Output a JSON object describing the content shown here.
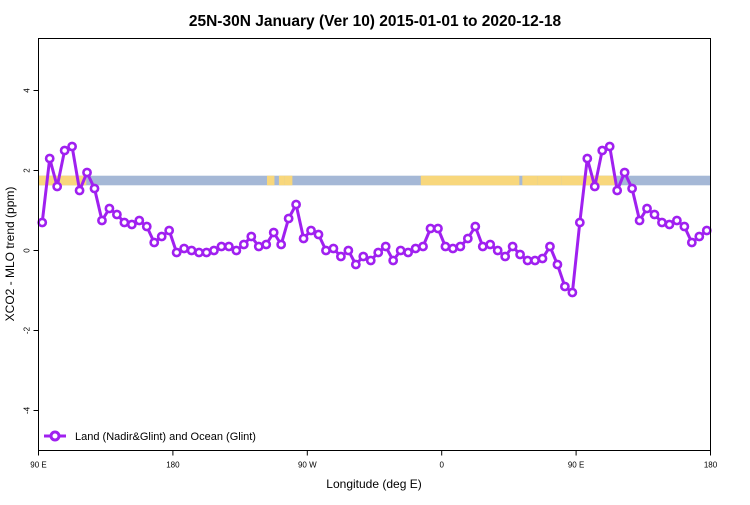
{
  "chart_data": {
    "type": "line",
    "title": "25N-30N January (Ver 10)   2015-01-01 to 2020-12-18",
    "xlabel": "Longitude (deg E)",
    "ylabel": "XCO2 - MLO trend (ppm)",
    "xlim": [
      90,
      540
    ],
    "ylim": [
      -5,
      5.3
    ],
    "x_ticks": [
      {
        "value": 90,
        "label": "90 E"
      },
      {
        "value": 180,
        "label": "180"
      },
      {
        "value": 270,
        "label": "90 W"
      },
      {
        "value": 360,
        "label": "0"
      },
      {
        "value": 450,
        "label": "90 E"
      },
      {
        "value": 540,
        "label": "180"
      }
    ],
    "y_ticks": [
      {
        "value": -4,
        "label": "-4"
      },
      {
        "value": -2,
        "label": "-2"
      },
      {
        "value": 0,
        "label": "0"
      },
      {
        "value": 2,
        "label": "2"
      },
      {
        "value": 4,
        "label": "4"
      }
    ],
    "grid": false,
    "legend": {
      "position": "bottom-left",
      "entries": [
        "Land (Nadir&Glint) and Ocean (Glint)"
      ]
    },
    "colors": {
      "series": "#a020f0",
      "ocean": "#a5b8d6",
      "land": "#f8d77c"
    },
    "land_ocean_band": {
      "y_center": 1.75,
      "half_height": 0.12,
      "land_segments": [
        [
          90,
          122
        ],
        [
          243,
          248
        ],
        [
          251,
          255
        ],
        [
          255,
          260
        ],
        [
          346,
          412
        ],
        [
          414,
          424
        ],
        [
          424,
          440
        ],
        [
          440,
          477
        ]
      ]
    },
    "series": [
      {
        "name": "Land (Nadir&Glint) and Ocean (Glint)",
        "x": [
          92.5,
          97.5,
          102.5,
          107.5,
          112.5,
          117.5,
          122.5,
          127.5,
          132.5,
          137.5,
          142.5,
          147.5,
          152.5,
          157.5,
          162.5,
          167.5,
          172.5,
          177.5,
          182.5,
          187.5,
          192.5,
          197.5,
          202.5,
          207.5,
          212.5,
          217.5,
          222.5,
          227.5,
          232.5,
          237.5,
          242.5,
          247.5,
          252.5,
          257.5,
          262.5,
          267.5,
          272.5,
          277.5,
          282.5,
          287.5,
          292.5,
          297.5,
          302.5,
          307.5,
          312.5,
          317.5,
          322.5,
          327.5,
          332.5,
          337.5,
          342.5,
          347.5,
          352.5,
          357.5,
          362.5,
          367.5,
          372.5,
          377.5,
          382.5,
          387.5,
          392.5,
          397.5,
          402.5,
          407.5,
          412.5,
          417.5,
          422.5,
          427.5,
          432.5,
          437.5,
          442.5,
          447.5,
          452.5,
          457.5,
          462.5,
          467.5,
          472.5,
          477.5,
          482.5,
          487.5,
          492.5,
          497.5,
          502.5,
          507.5,
          512.5,
          517.5,
          522.5,
          527.5,
          532.5,
          537.5
        ],
        "values": [
          0.7,
          2.3,
          1.6,
          2.5,
          2.6,
          1.5,
          1.95,
          1.55,
          0.75,
          1.05,
          0.9,
          0.7,
          0.65,
          0.75,
          0.6,
          0.2,
          0.35,
          0.5,
          -0.05,
          0.05,
          0.0,
          -0.05,
          -0.05,
          0.0,
          0.1,
          0.1,
          0.0,
          0.15,
          0.35,
          0.1,
          0.15,
          0.45,
          0.15,
          0.8,
          1.15,
          0.3,
          0.5,
          0.4,
          0.0,
          0.05,
          -0.15,
          0.0,
          -0.35,
          -0.15,
          -0.25,
          -0.05,
          0.1,
          -0.25,
          0.0,
          -0.05,
          0.05,
          0.1,
          0.55,
          0.55,
          0.1,
          0.05,
          0.1,
          0.3,
          0.6,
          0.1,
          0.15,
          0.0,
          -0.15,
          0.1,
          -0.1,
          -0.25,
          -0.25,
          -0.2,
          0.1,
          -0.35,
          -0.9,
          -1.05,
          0.7,
          2.3,
          1.6,
          2.5,
          2.6,
          1.5,
          1.95,
          1.55,
          0.75,
          1.05,
          0.9,
          0.7,
          0.65,
          0.75,
          0.6,
          0.2,
          0.35,
          0.5
        ]
      }
    ]
  }
}
